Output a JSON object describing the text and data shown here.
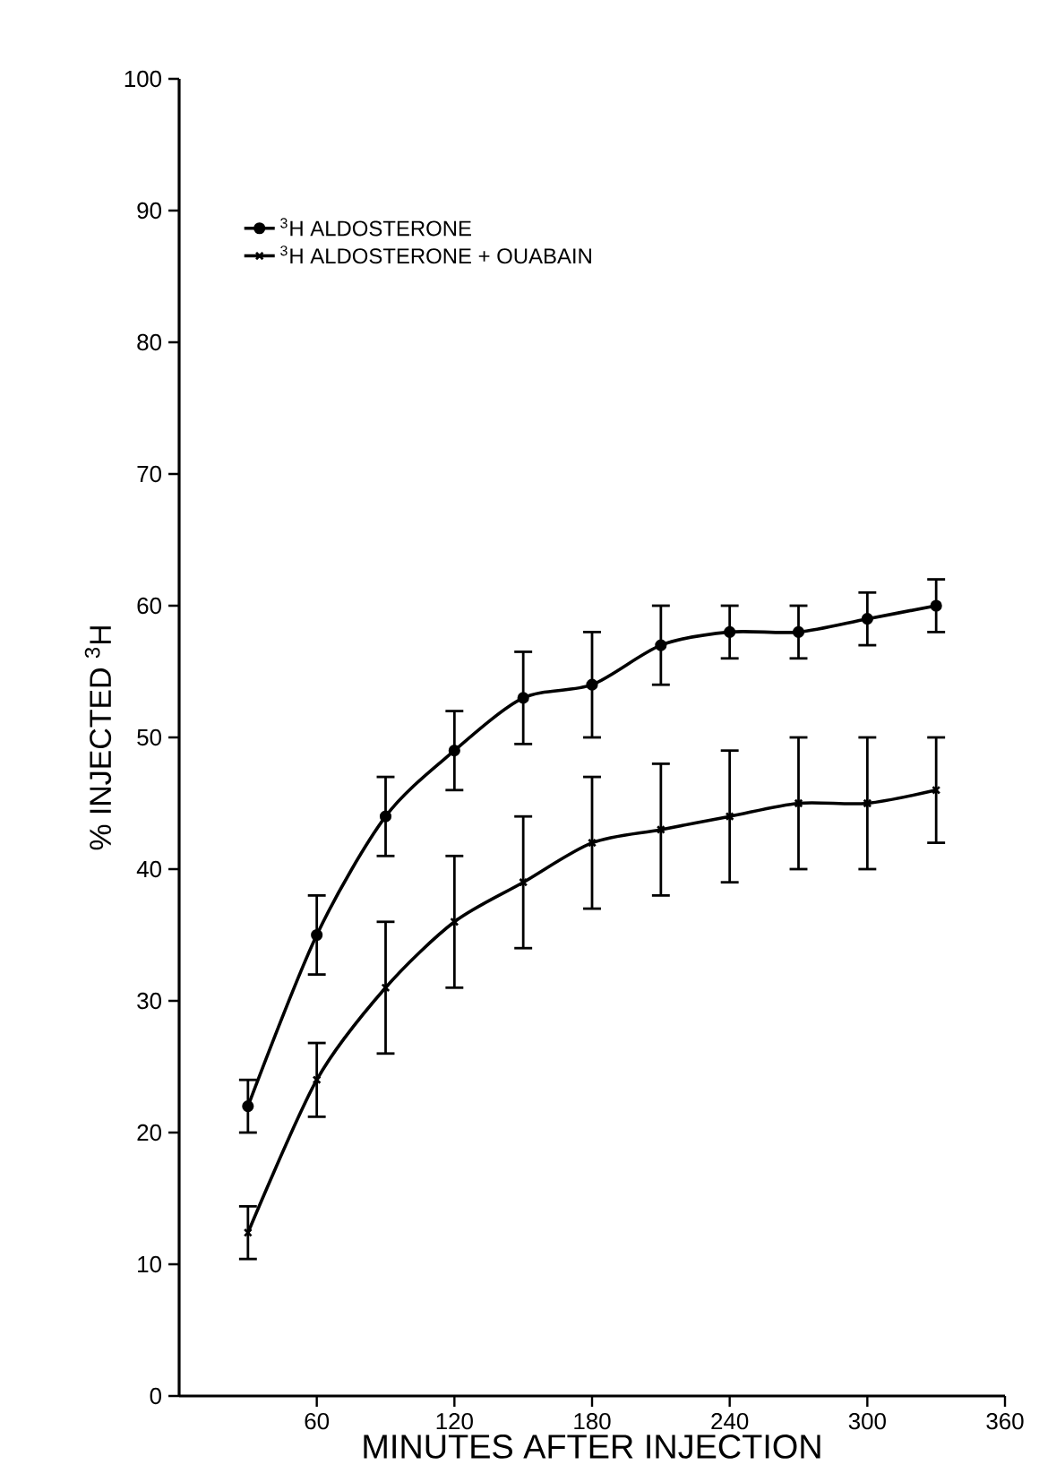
{
  "chart_data": {
    "type": "line",
    "xlabel": "MINUTES AFTER INJECTION",
    "ylabel": "% INJECTED $^{3}$H",
    "x": [
      30,
      60,
      90,
      120,
      150,
      180,
      210,
      240,
      270,
      300,
      330
    ],
    "series": [
      {
        "name": "$^{3}$H ALDOSTERONE",
        "color": "#000000",
        "marker": "circle",
        "values": [
          22,
          35,
          44,
          49,
          53,
          54,
          57,
          58,
          58,
          59,
          60
        ],
        "errors": [
          2,
          3,
          3,
          3,
          3.5,
          4,
          3,
          2,
          2,
          2,
          2
        ]
      },
      {
        "name": "$^{3}$H ALDOSTERONE + OUABAIN",
        "color": "#000000",
        "marker": "cross",
        "values": [
          12.4,
          24,
          31,
          36,
          39,
          42,
          43,
          44,
          45,
          45,
          46
        ],
        "errors": [
          2,
          2.8,
          5,
          5,
          5,
          5,
          5,
          5,
          5,
          5,
          4
        ]
      }
    ],
    "xlim": [
      0,
      360
    ],
    "ylim": [
      0,
      100
    ],
    "xticks": [
      60,
      120,
      180,
      240,
      300,
      360
    ],
    "yticks": [
      0,
      10,
      20,
      30,
      40,
      50,
      60,
      70,
      80,
      90,
      100
    ],
    "legend": "top left",
    "line_style": "solid"
  }
}
